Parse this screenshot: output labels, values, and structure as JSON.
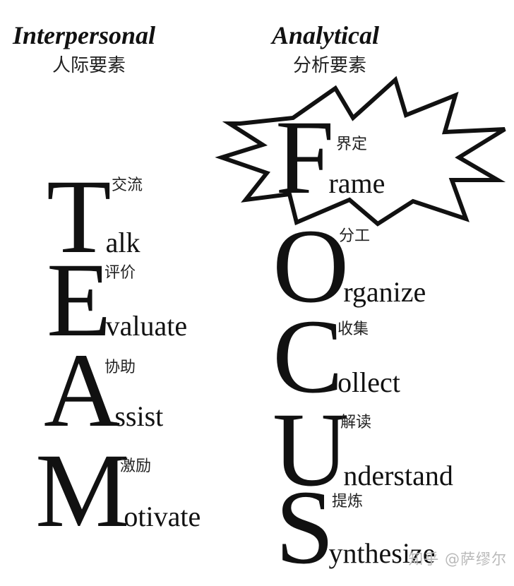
{
  "left_column": {
    "heading": "Interpersonal",
    "heading_zh": "人际要素",
    "items": [
      {
        "initial": "T",
        "rest": "alk",
        "zh": "交流"
      },
      {
        "initial": "E",
        "rest": "valuate",
        "zh": "评价"
      },
      {
        "initial": "A",
        "rest": "ssist",
        "zh": "协助"
      },
      {
        "initial": "M",
        "rest": "otivate",
        "zh": "激励"
      }
    ]
  },
  "right_column": {
    "heading": "Analytical",
    "heading_zh": "分析要素",
    "items": [
      {
        "initial": "F",
        "rest": "rame",
        "zh": "界定"
      },
      {
        "initial": "O",
        "rest": "rganize",
        "zh": "分工"
      },
      {
        "initial": "C",
        "rest": "ollect",
        "zh": "收集"
      },
      {
        "initial": "U",
        "rest": "nderstand",
        "zh": "解读"
      },
      {
        "initial": "S",
        "rest": "ynthesize",
        "zh": "提炼"
      }
    ]
  },
  "watermark": "知乎 @萨缪尔"
}
